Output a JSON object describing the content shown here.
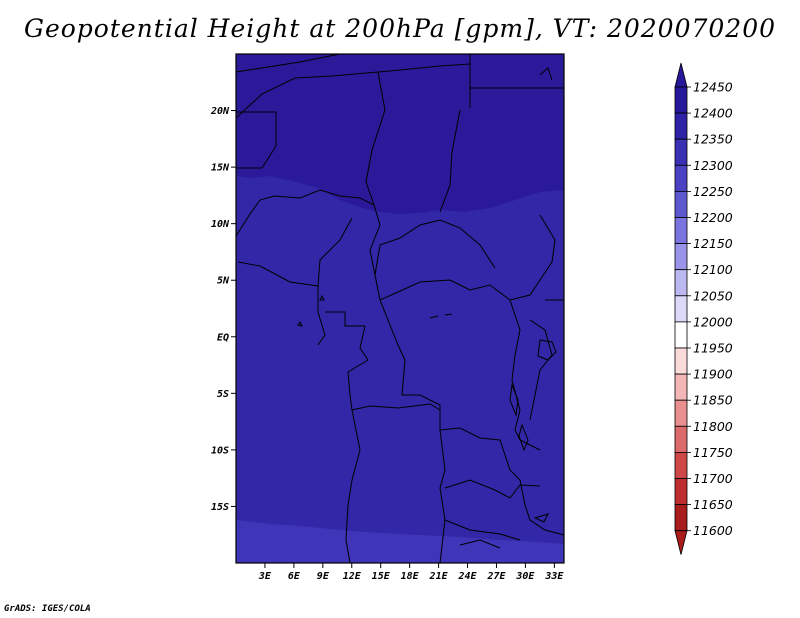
{
  "title": "Geopotential Height at 200hPa [gpm], VT: 2020070200",
  "credit": "GrADS: IGES/COLA",
  "map": {
    "lon_range": [
      0,
      34
    ],
    "lat_range": [
      -20,
      25
    ],
    "lat_ticks": [
      {
        "value": 20,
        "label": "20N"
      },
      {
        "value": 15,
        "label": "15N"
      },
      {
        "value": 10,
        "label": "10N"
      },
      {
        "value": 5,
        "label": "5N"
      },
      {
        "value": 0,
        "label": "EQ"
      },
      {
        "value": -5,
        "label": "5S"
      },
      {
        "value": -10,
        "label": "10S"
      },
      {
        "value": -15,
        "label": "15S"
      }
    ],
    "lon_ticks": [
      {
        "value": 3,
        "label": "3E"
      },
      {
        "value": 6,
        "label": "6E"
      },
      {
        "value": 9,
        "label": "9E"
      },
      {
        "value": 12,
        "label": "12E"
      },
      {
        "value": 15,
        "label": "15E"
      },
      {
        "value": 18,
        "label": "18E"
      },
      {
        "value": 21,
        "label": "21E"
      },
      {
        "value": 24,
        "label": "24E"
      },
      {
        "value": 27,
        "label": "27E"
      },
      {
        "value": 30,
        "label": "30E"
      },
      {
        "value": 33,
        "label": "33E"
      }
    ],
    "fill_bands": [
      {
        "range": "12400-12450",
        "color": "#2a1a9a"
      },
      {
        "range": "12350-12400",
        "color": "#3227a6"
      },
      {
        "range": "12300-12350",
        "color": "#3f35b8"
      }
    ]
  },
  "colorbar": {
    "levels": [
      "12450",
      "12400",
      "12350",
      "12300",
      "12250",
      "12200",
      "12150",
      "12100",
      "12050",
      "12000",
      "11950",
      "11900",
      "11850",
      "11800",
      "11750",
      "11700",
      "11650",
      "11600"
    ],
    "colors": [
      "#28189a",
      "#2e22a6",
      "#3a30b4",
      "#4a42c2",
      "#5e58d0",
      "#7a74de",
      "#9a94e8",
      "#bcb8f2",
      "#dcdaf8",
      "#ffffff",
      "#fbdada",
      "#f4b6b6",
      "#e98f8f",
      "#dc6a6a",
      "#cf4848",
      "#bf2e2e",
      "#a81c1c"
    ],
    "top_arrow_color": "#28189a",
    "bottom_arrow_color": "#a81c1c"
  }
}
